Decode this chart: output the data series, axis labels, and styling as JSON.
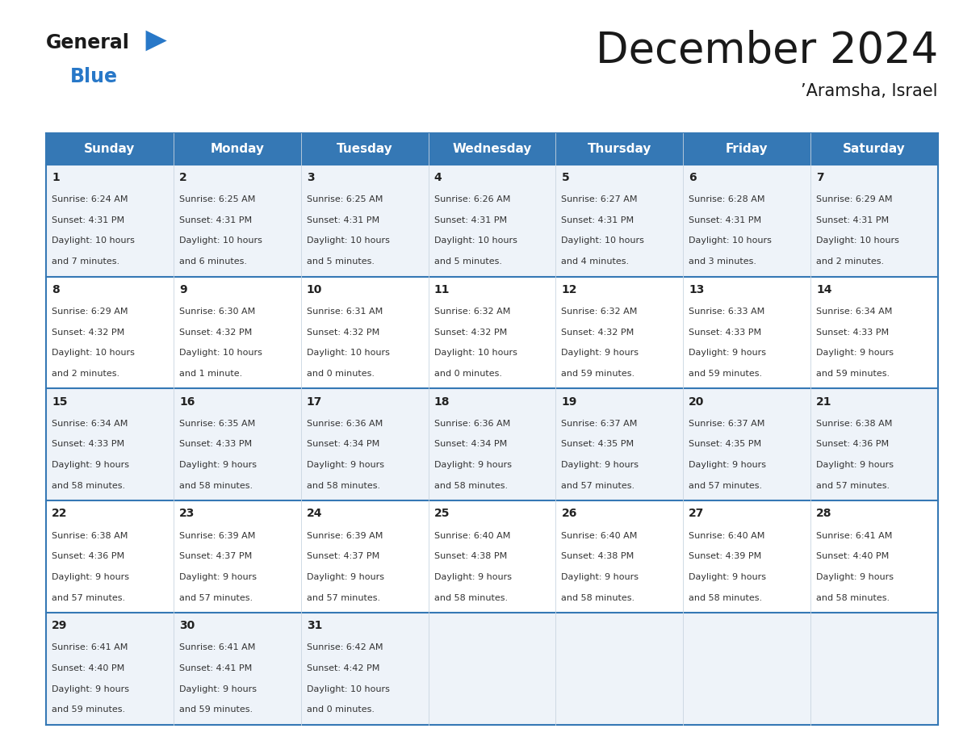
{
  "title": "December 2024",
  "subtitle": "’Aramsha, Israel",
  "header_color": "#3578b5",
  "header_text_color": "#ffffff",
  "border_color": "#3578b5",
  "text_color": "#333333",
  "days_of_week": [
    "Sunday",
    "Monday",
    "Tuesday",
    "Wednesday",
    "Thursday",
    "Friday",
    "Saturday"
  ],
  "weeks": [
    [
      {
        "day": 1,
        "sunrise": "6:24 AM",
        "sunset": "4:31 PM",
        "daylight_h": "10 hours",
        "daylight_m": "and 7 minutes."
      },
      {
        "day": 2,
        "sunrise": "6:25 AM",
        "sunset": "4:31 PM",
        "daylight_h": "10 hours",
        "daylight_m": "and 6 minutes."
      },
      {
        "day": 3,
        "sunrise": "6:25 AM",
        "sunset": "4:31 PM",
        "daylight_h": "10 hours",
        "daylight_m": "and 5 minutes."
      },
      {
        "day": 4,
        "sunrise": "6:26 AM",
        "sunset": "4:31 PM",
        "daylight_h": "10 hours",
        "daylight_m": "and 5 minutes."
      },
      {
        "day": 5,
        "sunrise": "6:27 AM",
        "sunset": "4:31 PM",
        "daylight_h": "10 hours",
        "daylight_m": "and 4 minutes."
      },
      {
        "day": 6,
        "sunrise": "6:28 AM",
        "sunset": "4:31 PM",
        "daylight_h": "10 hours",
        "daylight_m": "and 3 minutes."
      },
      {
        "day": 7,
        "sunrise": "6:29 AM",
        "sunset": "4:31 PM",
        "daylight_h": "10 hours",
        "daylight_m": "and 2 minutes."
      }
    ],
    [
      {
        "day": 8,
        "sunrise": "6:29 AM",
        "sunset": "4:32 PM",
        "daylight_h": "10 hours",
        "daylight_m": "and 2 minutes."
      },
      {
        "day": 9,
        "sunrise": "6:30 AM",
        "sunset": "4:32 PM",
        "daylight_h": "10 hours",
        "daylight_m": "and 1 minute."
      },
      {
        "day": 10,
        "sunrise": "6:31 AM",
        "sunset": "4:32 PM",
        "daylight_h": "10 hours",
        "daylight_m": "and 0 minutes."
      },
      {
        "day": 11,
        "sunrise": "6:32 AM",
        "sunset": "4:32 PM",
        "daylight_h": "10 hours",
        "daylight_m": "and 0 minutes."
      },
      {
        "day": 12,
        "sunrise": "6:32 AM",
        "sunset": "4:32 PM",
        "daylight_h": "9 hours",
        "daylight_m": "and 59 minutes."
      },
      {
        "day": 13,
        "sunrise": "6:33 AM",
        "sunset": "4:33 PM",
        "daylight_h": "9 hours",
        "daylight_m": "and 59 minutes."
      },
      {
        "day": 14,
        "sunrise": "6:34 AM",
        "sunset": "4:33 PM",
        "daylight_h": "9 hours",
        "daylight_m": "and 59 minutes."
      }
    ],
    [
      {
        "day": 15,
        "sunrise": "6:34 AM",
        "sunset": "4:33 PM",
        "daylight_h": "9 hours",
        "daylight_m": "and 58 minutes."
      },
      {
        "day": 16,
        "sunrise": "6:35 AM",
        "sunset": "4:33 PM",
        "daylight_h": "9 hours",
        "daylight_m": "and 58 minutes."
      },
      {
        "day": 17,
        "sunrise": "6:36 AM",
        "sunset": "4:34 PM",
        "daylight_h": "9 hours",
        "daylight_m": "and 58 minutes."
      },
      {
        "day": 18,
        "sunrise": "6:36 AM",
        "sunset": "4:34 PM",
        "daylight_h": "9 hours",
        "daylight_m": "and 58 minutes."
      },
      {
        "day": 19,
        "sunrise": "6:37 AM",
        "sunset": "4:35 PM",
        "daylight_h": "9 hours",
        "daylight_m": "and 57 minutes."
      },
      {
        "day": 20,
        "sunrise": "6:37 AM",
        "sunset": "4:35 PM",
        "daylight_h": "9 hours",
        "daylight_m": "and 57 minutes."
      },
      {
        "day": 21,
        "sunrise": "6:38 AM",
        "sunset": "4:36 PM",
        "daylight_h": "9 hours",
        "daylight_m": "and 57 minutes."
      }
    ],
    [
      {
        "day": 22,
        "sunrise": "6:38 AM",
        "sunset": "4:36 PM",
        "daylight_h": "9 hours",
        "daylight_m": "and 57 minutes."
      },
      {
        "day": 23,
        "sunrise": "6:39 AM",
        "sunset": "4:37 PM",
        "daylight_h": "9 hours",
        "daylight_m": "and 57 minutes."
      },
      {
        "day": 24,
        "sunrise": "6:39 AM",
        "sunset": "4:37 PM",
        "daylight_h": "9 hours",
        "daylight_m": "and 57 minutes."
      },
      {
        "day": 25,
        "sunrise": "6:40 AM",
        "sunset": "4:38 PM",
        "daylight_h": "9 hours",
        "daylight_m": "and 58 minutes."
      },
      {
        "day": 26,
        "sunrise": "6:40 AM",
        "sunset": "4:38 PM",
        "daylight_h": "9 hours",
        "daylight_m": "and 58 minutes."
      },
      {
        "day": 27,
        "sunrise": "6:40 AM",
        "sunset": "4:39 PM",
        "daylight_h": "9 hours",
        "daylight_m": "and 58 minutes."
      },
      {
        "day": 28,
        "sunrise": "6:41 AM",
        "sunset": "4:40 PM",
        "daylight_h": "9 hours",
        "daylight_m": "and 58 minutes."
      }
    ],
    [
      {
        "day": 29,
        "sunrise": "6:41 AM",
        "sunset": "4:40 PM",
        "daylight_h": "9 hours",
        "daylight_m": "and 59 minutes."
      },
      {
        "day": 30,
        "sunrise": "6:41 AM",
        "sunset": "4:41 PM",
        "daylight_h": "9 hours",
        "daylight_m": "and 59 minutes."
      },
      {
        "day": 31,
        "sunrise": "6:42 AM",
        "sunset": "4:42 PM",
        "daylight_h": "10 hours",
        "daylight_m": "and 0 minutes."
      },
      null,
      null,
      null,
      null
    ]
  ],
  "logo_black_color": "#1a1a1a",
  "logo_blue_color": "#2878c8",
  "title_fontsize": 38,
  "subtitle_fontsize": 15,
  "header_fontsize": 11,
  "day_num_fontsize": 10,
  "cell_fontsize": 8
}
